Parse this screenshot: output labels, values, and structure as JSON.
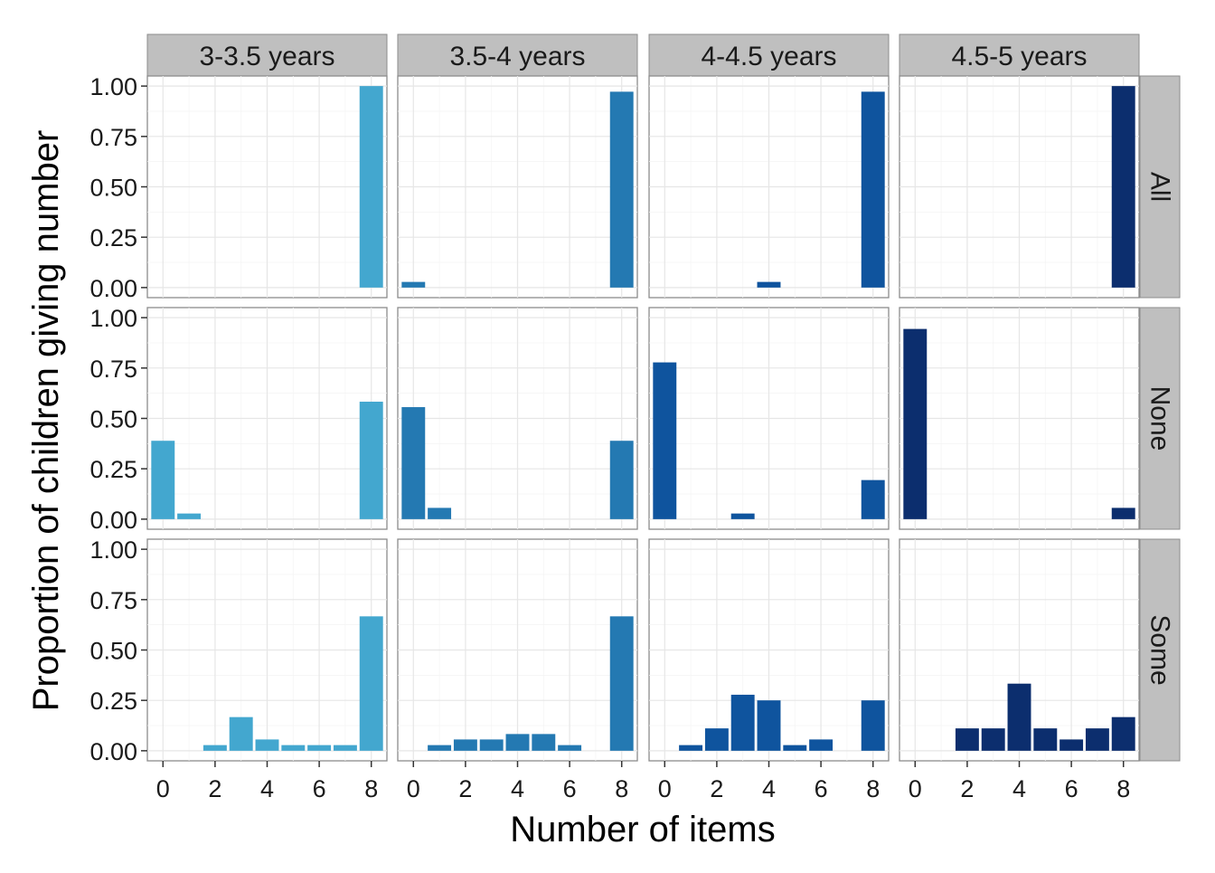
{
  "chart_data": {
    "type": "bar",
    "xlabel": "Number of items",
    "ylabel": "Proportion of children giving number",
    "xlim": [
      -0.6,
      8.6
    ],
    "ylim": [
      -0.05,
      1.05
    ],
    "xticks": [
      0,
      2,
      4,
      6,
      8
    ],
    "yticks": [
      0.0,
      0.25,
      0.5,
      0.75,
      1.0
    ],
    "ytick_labels": [
      "0.00",
      "0.25",
      "0.50",
      "0.75",
      "1.00"
    ],
    "grid": true,
    "columns": [
      {
        "label": "3-3.5 years",
        "color": "#43a7cf"
      },
      {
        "label": "3.5-4 years",
        "color": "#2479b2"
      },
      {
        "label": "4-4.5 years",
        "color": "#0f549e"
      },
      {
        "label": "4.5-5 years",
        "color": "#0c2e6e"
      }
    ],
    "rows": [
      {
        "label": "All"
      },
      {
        "label": "None"
      },
      {
        "label": "Some"
      }
    ],
    "panels": [
      {
        "row": "All",
        "column": "3-3.5 years",
        "bars": [
          {
            "x": 8,
            "y": 1.0
          }
        ]
      },
      {
        "row": "All",
        "column": "3.5-4 years",
        "bars": [
          {
            "x": 0,
            "y": 0.028
          },
          {
            "x": 8,
            "y": 0.972
          }
        ]
      },
      {
        "row": "All",
        "column": "4-4.5 years",
        "bars": [
          {
            "x": 4,
            "y": 0.028
          },
          {
            "x": 8,
            "y": 0.972
          }
        ]
      },
      {
        "row": "All",
        "column": "4.5-5 years",
        "bars": [
          {
            "x": 8,
            "y": 1.0
          }
        ]
      },
      {
        "row": "None",
        "column": "3-3.5 years",
        "bars": [
          {
            "x": 0,
            "y": 0.389
          },
          {
            "x": 1,
            "y": 0.028
          },
          {
            "x": 8,
            "y": 0.583
          }
        ]
      },
      {
        "row": "None",
        "column": "3.5-4 years",
        "bars": [
          {
            "x": 0,
            "y": 0.556
          },
          {
            "x": 1,
            "y": 0.056
          },
          {
            "x": 8,
            "y": 0.389
          }
        ]
      },
      {
        "row": "None",
        "column": "4-4.5 years",
        "bars": [
          {
            "x": 0,
            "y": 0.778
          },
          {
            "x": 3,
            "y": 0.028
          },
          {
            "x": 8,
            "y": 0.194
          }
        ]
      },
      {
        "row": "None",
        "column": "4.5-5 years",
        "bars": [
          {
            "x": 0,
            "y": 0.944
          },
          {
            "x": 8,
            "y": 0.056
          }
        ]
      },
      {
        "row": "Some",
        "column": "3-3.5 years",
        "bars": [
          {
            "x": 2,
            "y": 0.028
          },
          {
            "x": 3,
            "y": 0.167
          },
          {
            "x": 4,
            "y": 0.056
          },
          {
            "x": 5,
            "y": 0.028
          },
          {
            "x": 6,
            "y": 0.028
          },
          {
            "x": 7,
            "y": 0.028
          },
          {
            "x": 8,
            "y": 0.667
          }
        ]
      },
      {
        "row": "Some",
        "column": "3.5-4 years",
        "bars": [
          {
            "x": 1,
            "y": 0.028
          },
          {
            "x": 2,
            "y": 0.056
          },
          {
            "x": 3,
            "y": 0.056
          },
          {
            "x": 4,
            "y": 0.083
          },
          {
            "x": 5,
            "y": 0.083
          },
          {
            "x": 6,
            "y": 0.028
          },
          {
            "x": 8,
            "y": 0.667
          }
        ]
      },
      {
        "row": "Some",
        "column": "4-4.5 years",
        "bars": [
          {
            "x": 1,
            "y": 0.028
          },
          {
            "x": 2,
            "y": 0.111
          },
          {
            "x": 3,
            "y": 0.278
          },
          {
            "x": 4,
            "y": 0.25
          },
          {
            "x": 5,
            "y": 0.028
          },
          {
            "x": 6,
            "y": 0.056
          },
          {
            "x": 8,
            "y": 0.25
          }
        ]
      },
      {
        "row": "Some",
        "column": "4.5-5 years",
        "bars": [
          {
            "x": 2,
            "y": 0.111
          },
          {
            "x": 3,
            "y": 0.111
          },
          {
            "x": 4,
            "y": 0.333
          },
          {
            "x": 5,
            "y": 0.111
          },
          {
            "x": 6,
            "y": 0.056
          },
          {
            "x": 7,
            "y": 0.111
          },
          {
            "x": 8,
            "y": 0.167
          }
        ]
      }
    ]
  }
}
